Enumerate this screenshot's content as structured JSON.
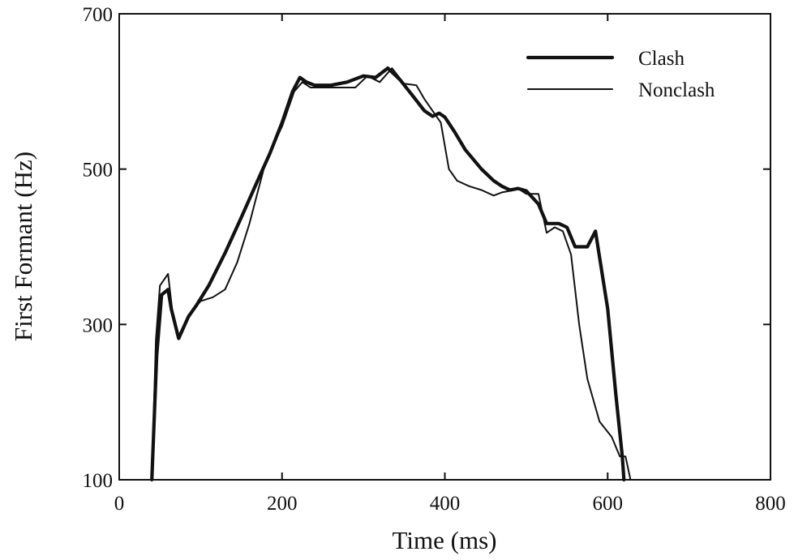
{
  "chart_data": {
    "type": "line",
    "title": "",
    "xlabel": "Time (ms)",
    "ylabel": "First Formant (Hz)",
    "xlim": [
      0,
      800
    ],
    "ylim": [
      100,
      700
    ],
    "xticks": [
      0,
      200,
      400,
      600,
      800
    ],
    "yticks": [
      100,
      300,
      500,
      700
    ],
    "xtick_labels": [
      "0",
      "200",
      "400",
      "600",
      "800"
    ],
    "ytick_labels": [
      "100",
      "300",
      "500",
      "700"
    ],
    "grid": false,
    "legend_position": "top-right",
    "series": [
      {
        "name": "Clash",
        "style": "thick",
        "x": [
          40,
          46,
          52,
          60,
          64,
          73,
          85,
          95,
          110,
          130,
          150,
          170,
          185,
          200,
          213,
          222,
          230,
          240,
          260,
          280,
          300,
          315,
          330,
          345,
          360,
          375,
          385,
          393,
          400,
          412,
          425,
          445,
          460,
          470,
          480,
          490,
          500,
          515,
          525,
          540,
          550,
          560,
          575,
          585,
          600,
          610,
          618,
          620
        ],
        "y": [
          100,
          260,
          338,
          345,
          320,
          282,
          310,
          325,
          350,
          392,
          438,
          485,
          520,
          560,
          600,
          618,
          612,
          608,
          608,
          612,
          620,
          618,
          630,
          615,
          595,
          575,
          568,
          572,
          567,
          548,
          525,
          500,
          485,
          478,
          473,
          475,
          472,
          455,
          430,
          430,
          425,
          400,
          400,
          420,
          320,
          210,
          130,
          100
        ]
      },
      {
        "name": "Nonclash",
        "style": "thin",
        "x": [
          40,
          45,
          50,
          60,
          65,
          73,
          85,
          100,
          115,
          130,
          145,
          160,
          170,
          180,
          200,
          215,
          225,
          235,
          250,
          270,
          290,
          305,
          320,
          335,
          350,
          365,
          375,
          385,
          395,
          405,
          415,
          430,
          445,
          460,
          470,
          480,
          490,
          500,
          515,
          525,
          535,
          545,
          555,
          565,
          575,
          590,
          605,
          615,
          622,
          628
        ],
        "y": [
          100,
          280,
          350,
          365,
          320,
          285,
          312,
          330,
          335,
          345,
          380,
          430,
          470,
          510,
          555,
          600,
          612,
          605,
          605,
          605,
          605,
          620,
          612,
          630,
          610,
          608,
          590,
          575,
          560,
          500,
          485,
          478,
          473,
          466,
          470,
          472,
          475,
          468,
          468,
          418,
          425,
          420,
          390,
          300,
          230,
          175,
          155,
          130,
          130,
          100
        ]
      }
    ]
  }
}
